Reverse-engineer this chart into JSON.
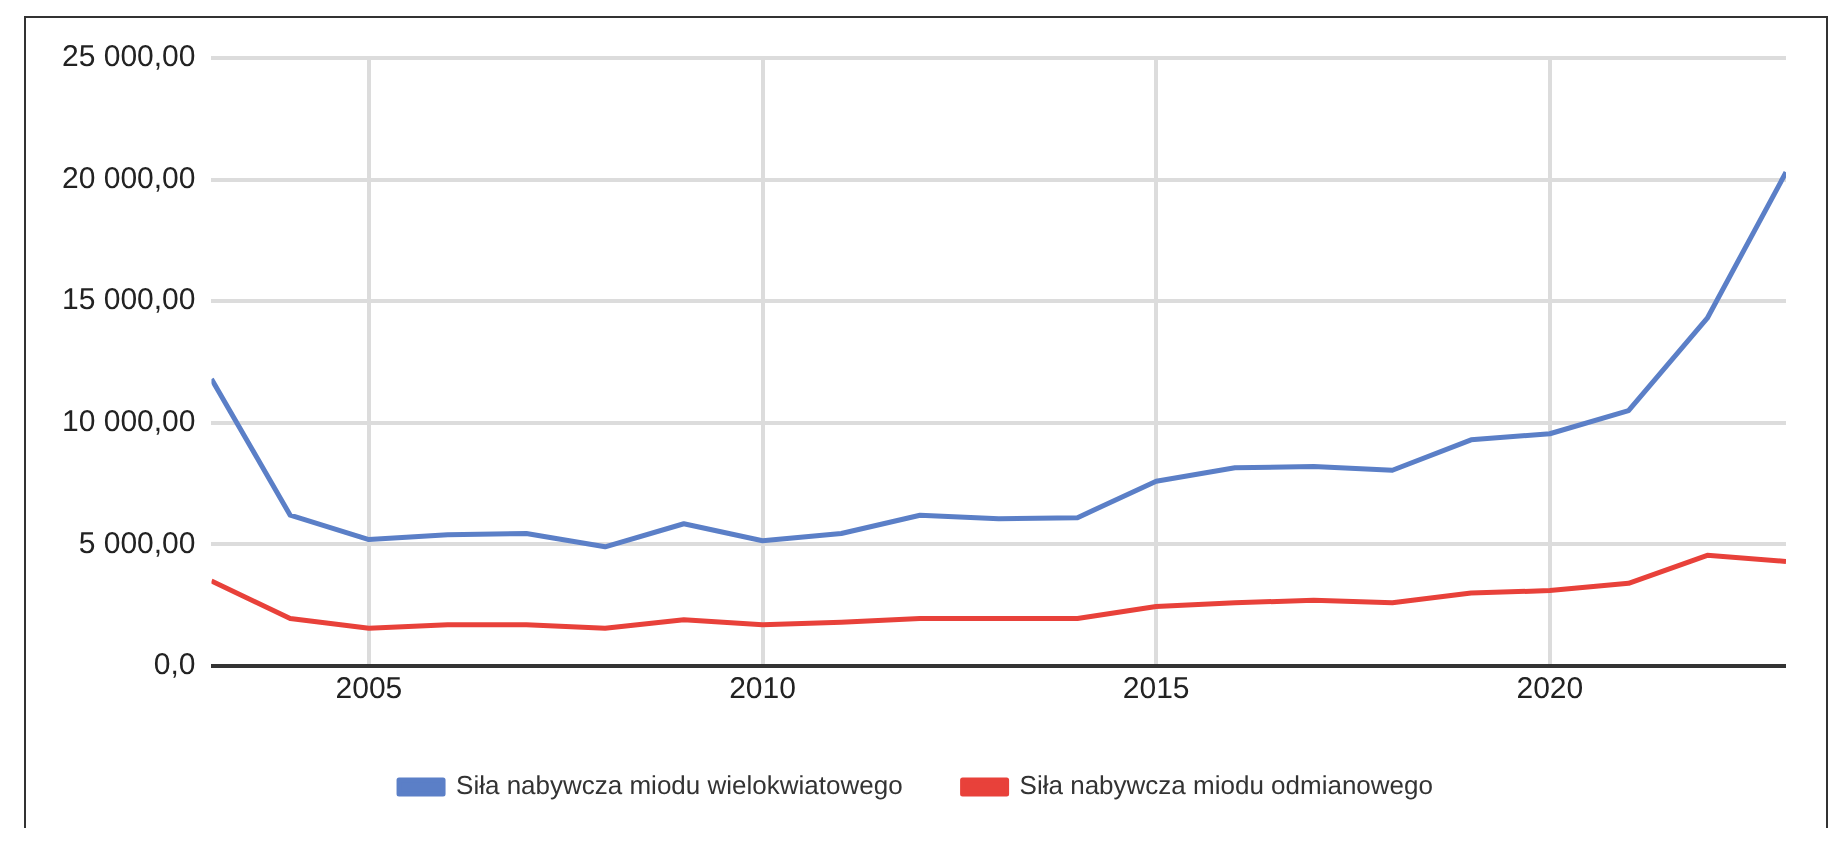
{
  "chart_data": {
    "type": "line",
    "x": [
      2003,
      2004,
      2005,
      2006,
      2007,
      2008,
      2009,
      2010,
      2011,
      2012,
      2013,
      2014,
      2015,
      2016,
      2017,
      2018,
      2019,
      2020,
      2021,
      2022,
      2023
    ],
    "series": [
      {
        "name": "Siła nabywcza miodu wielokwiatowego",
        "color": "#5b7fc7",
        "values": [
          11800,
          6200,
          5200,
          5400,
          5450,
          4900,
          5850,
          5150,
          5450,
          6200,
          6050,
          6100,
          7600,
          8150,
          8200,
          8050,
          9300,
          9550,
          10500,
          14300,
          20300
        ]
      },
      {
        "name": "Siła nabywcza miodu odmianowego",
        "color": "#e8413a",
        "values": [
          3500,
          1950,
          1550,
          1700,
          1700,
          1550,
          1900,
          1700,
          1800,
          1950,
          1950,
          1950,
          2450,
          2600,
          2700,
          2600,
          3000,
          3100,
          3400,
          4550,
          4300
        ]
      }
    ],
    "xlim": [
      2003,
      2023
    ],
    "xticks": [
      2005,
      2010,
      2015,
      2020
    ],
    "ylim": [
      0,
      25000
    ],
    "yticks": [
      {
        "value": 0,
        "label": "0,0"
      },
      {
        "value": 5000,
        "label": "5 000,00"
      },
      {
        "value": 10000,
        "label": "10 000,00"
      },
      {
        "value": 15000,
        "label": "15 000,00"
      },
      {
        "value": 20000,
        "label": "20 000,00"
      },
      {
        "value": 25000,
        "label": "25 000,00"
      }
    ],
    "grid": true,
    "legend": "bottom",
    "marker": "none",
    "line_style": "solid"
  }
}
